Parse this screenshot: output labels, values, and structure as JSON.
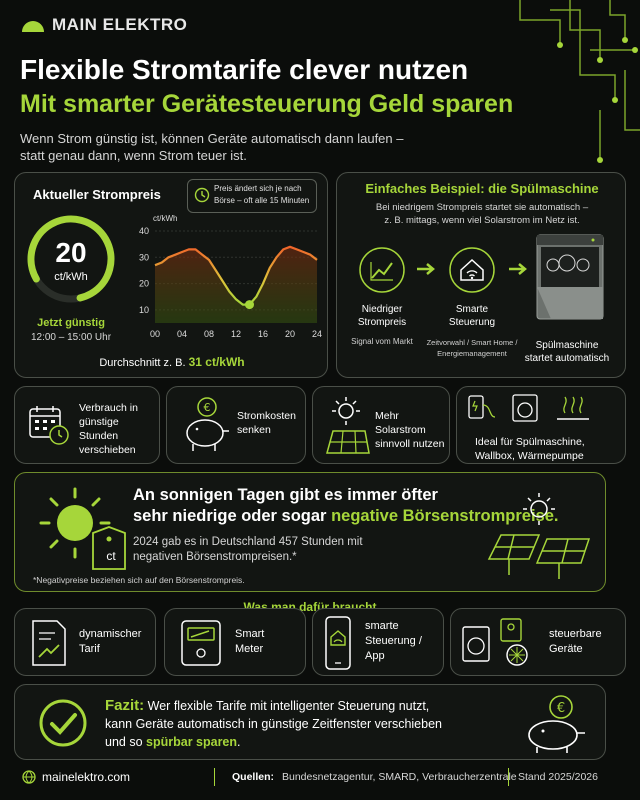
{
  "brand": {
    "name": "MAIN ELEKTRO"
  },
  "header": {
    "title": "Flexible Stromtarife clever nutzen",
    "subtitle": "Mit smarter Gerätesteuerung Geld sparen",
    "intro_line1": "Wenn Strom günstig ist, können Geräte automatisch dann laufen –",
    "intro_line2": "statt genau dann, wenn Strom teuer ist."
  },
  "price_card": {
    "title": "Aktueller Strompreis",
    "value": "20",
    "unit": "ct/kWh",
    "status": "Jetzt günstig",
    "time_window": "12:00 – 15:00 Uhr",
    "note_line1": "Preis ändert sich je nach",
    "note_line2": "Börse – oft alle 15 Minuten",
    "average_label": "Durchschnitt z. B.",
    "average_value": "31 ct/kWh"
  },
  "chart_data": {
    "type": "line",
    "ylabel": "ct/kWh",
    "x": [
      0,
      1,
      2,
      3,
      4,
      5,
      6,
      7,
      8,
      9,
      10,
      11,
      12,
      13,
      14,
      15,
      16,
      17,
      18,
      19,
      20,
      21,
      22,
      23,
      24
    ],
    "y": [
      27,
      28,
      30,
      31,
      32,
      33,
      33,
      31,
      29,
      25,
      21,
      17,
      14,
      12,
      12,
      15,
      20,
      26,
      30,
      33,
      34,
      33,
      32,
      31,
      29
    ],
    "x_ticks": [
      "00",
      "04",
      "08",
      "12",
      "16",
      "20",
      "24"
    ],
    "y_ticks": [
      "10",
      "20",
      "30",
      "40"
    ],
    "ylim": [
      5,
      40
    ],
    "xlim": [
      0,
      24
    ],
    "marker": {
      "x": 14,
      "y": 12
    },
    "grid": true
  },
  "example": {
    "title": "Einfaches Beispiel: die Spülmaschine",
    "desc_line1": "Bei niedrigem Strompreis startet sie automatisch –",
    "desc_line2": "z. B. mittags, wenn viel Solarstrom im Netz ist.",
    "steps": [
      {
        "icon": "chart-rising-icon",
        "label1": "Niedriger",
        "label2": "Strompreis",
        "sub1": "Signal vom Markt",
        "sub2": ""
      },
      {
        "icon": "smart-home-icon",
        "label1": "Smarte",
        "label2": "Steuerung",
        "sub1": "Zeitvorwahl / Smart Home /",
        "sub2": "Energiemanagement"
      },
      {
        "icon": "dishwasher-icon",
        "label1": "Spülmaschine",
        "label2": "startet automatisch",
        "sub1": "",
        "sub2": ""
      }
    ]
  },
  "benefits": [
    {
      "icon": "calendar-clock-icon",
      "line1": "Verbrauch in",
      "line2": "günstige Stunden",
      "line3": "verschieben"
    },
    {
      "icon": "piggy-bank-icon",
      "line1": "Stromkosten",
      "line2": "senken",
      "line3": ""
    },
    {
      "icon": "sun-solar-icon",
      "line1": "Mehr Solarstrom",
      "line2": "sinnvoll nutzen",
      "line3": ""
    },
    {
      "icon": "appliances-icon",
      "line1": "Ideal für Spülmaschine,",
      "line2": "Wallbox, Wärmepumpe",
      "line3": ""
    }
  ],
  "sunny": {
    "headline1": "An sonnigen Tagen gibt es immer öfter",
    "headline2a": "sehr niedrige oder sogar ",
    "headline2b": "negative Börsenstrompreise.",
    "body1": "2024 gab es in Deutschland 457 Stunden mit",
    "body2": "negativen Börsenstrompreisen.*",
    "footnote": "*Negativpreise beziehen sich auf den Börsenstrompreis.",
    "tag": "ct"
  },
  "needs": {
    "title": "Was man dafür braucht",
    "items": [
      {
        "icon": "tariff-document-icon",
        "line1": "dynamischer",
        "line2": "Tarif",
        "line3": ""
      },
      {
        "icon": "smart-meter-icon",
        "line1": "Smart",
        "line2": "Meter",
        "line3": ""
      },
      {
        "icon": "smartphone-app-icon",
        "line1": "smarte",
        "line2": "Steuerung /",
        "line3": "App"
      },
      {
        "icon": "controllable-devices-icon",
        "line1": "steuerbare",
        "line2": "Geräte",
        "line3": ""
      }
    ]
  },
  "conclusion": {
    "label": "Fazit:",
    "line1": "Wer flexible Tarife mit intelligenter Steuerung nutzt,",
    "line2": "kann Geräte automatisch in günstige Zeitfenster verschieben",
    "line3a": "und so ",
    "line3b": "spürbar sparen",
    "line3c": "."
  },
  "footer": {
    "website": "mainelektro.com",
    "sources_label": "Quellen:",
    "sources": "Bundesnetzagentur, SMARD, Verbraucherzentrale",
    "status": "Stand 2025/2026"
  },
  "colors": {
    "accent": "#a6d63a",
    "orange": "#f0642a",
    "background": "#0b0d0b",
    "border": "#4a4f48"
  }
}
